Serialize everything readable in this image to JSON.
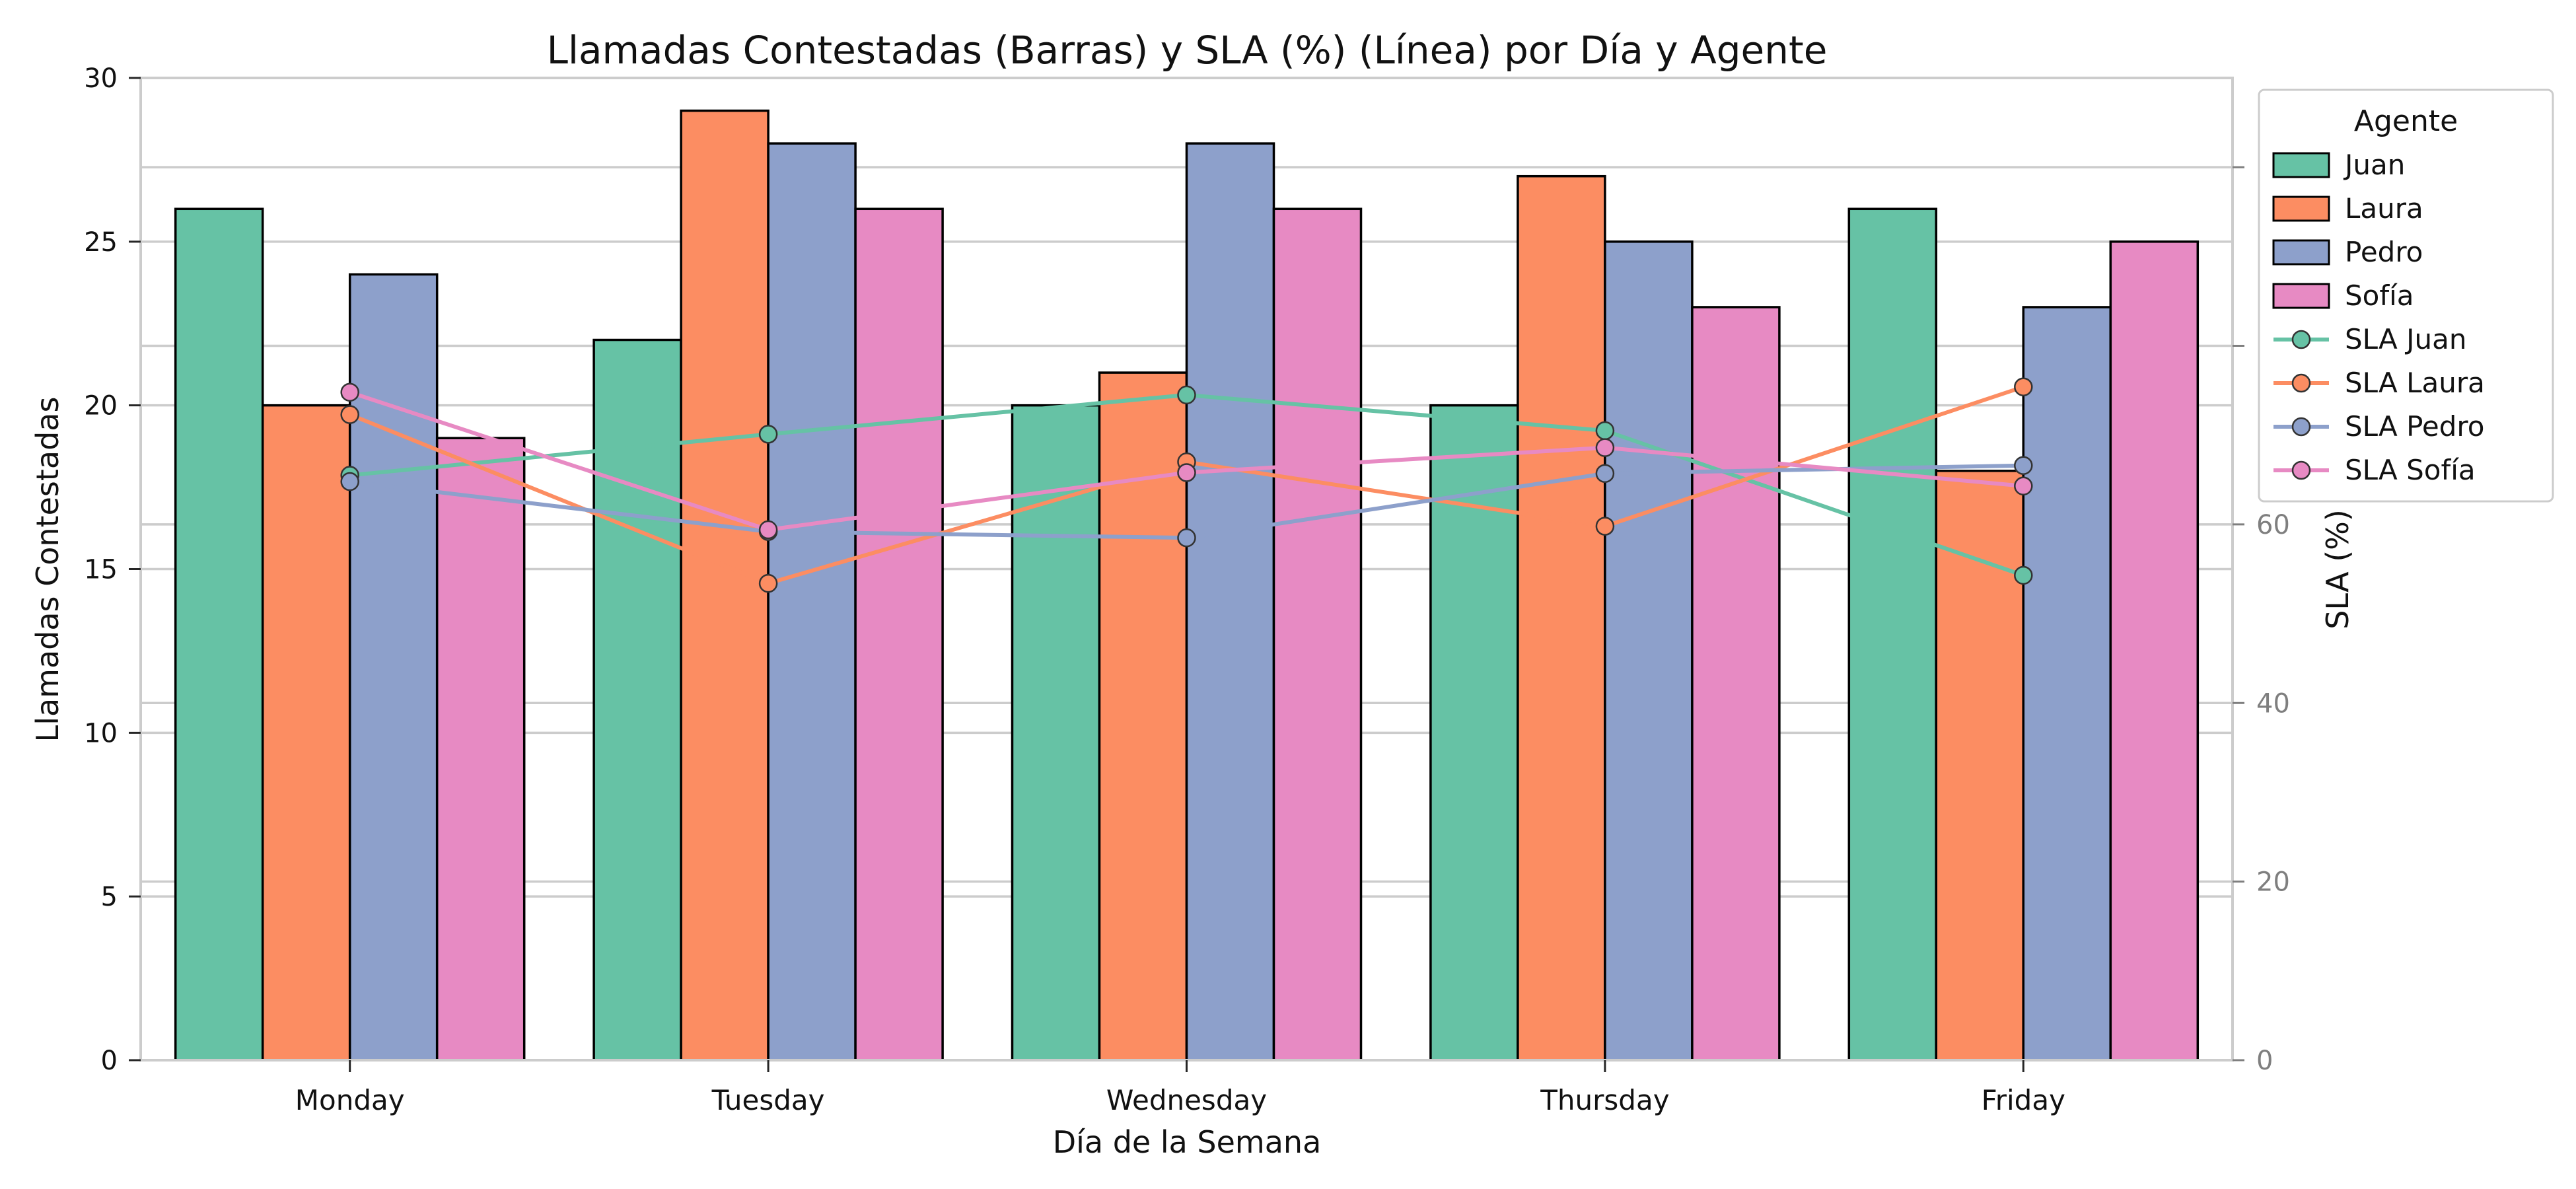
{
  "chart_data": {
    "type": "bar",
    "title": "Llamadas Contestadas (Barras) y SLA (%) (Línea) por Día y Agente",
    "xlabel": "Día de la Semana",
    "ylabel": "Llamadas Contestadas",
    "y2label": "SLA (%)",
    "categories": [
      "Monday",
      "Tuesday",
      "Wednesday",
      "Thursday",
      "Friday"
    ],
    "ylim": [
      0,
      30
    ],
    "y2lim": [
      0,
      110
    ],
    "yticks": [
      0,
      5,
      10,
      15,
      20,
      25,
      30
    ],
    "y2ticks": [
      0,
      20,
      40,
      60,
      80,
      100
    ],
    "grid": true,
    "legend": {
      "title": "Agente",
      "placement": "right"
    },
    "series": [
      {
        "name": "Juan",
        "color": "#66c2a5",
        "values": [
          26,
          22,
          20,
          20,
          26
        ]
      },
      {
        "name": "Laura",
        "color": "#fc8d62",
        "values": [
          20,
          29,
          21,
          27,
          18
        ]
      },
      {
        "name": "Pedro",
        "color": "#8da0cb",
        "values": [
          24,
          28,
          28,
          25,
          23
        ]
      },
      {
        "name": "Sofía",
        "color": "#e78ac3",
        "values": [
          19,
          26,
          26,
          23,
          25
        ]
      }
    ],
    "line_series": [
      {
        "name": "SLA Juan",
        "color": "#66c2a5",
        "values": [
          65.5,
          70.1,
          74.5,
          70.5,
          54.3
        ]
      },
      {
        "name": "SLA Laura",
        "color": "#fc8d62",
        "values": [
          72.3,
          53.4,
          67.0,
          59.8,
          75.4
        ]
      },
      {
        "name": "SLA Pedro",
        "color": "#8da0cb",
        "values": [
          64.8,
          59.2,
          58.5,
          65.7,
          66.6
        ]
      },
      {
        "name": "SLA Sofía",
        "color": "#e78ac3",
        "values": [
          74.8,
          59.4,
          65.8,
          68.6,
          64.3
        ]
      }
    ]
  }
}
